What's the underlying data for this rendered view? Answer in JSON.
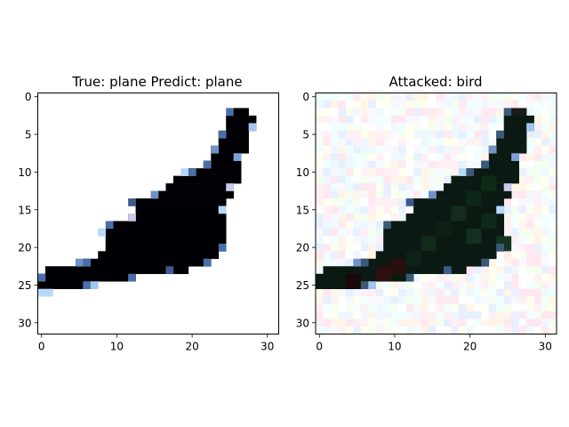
{
  "chart_data": [
    {
      "type": "heatmap",
      "title": "True: plane  Predict: plane",
      "xlabel": "",
      "ylabel": "",
      "xlim": [
        -0.5,
        31.5
      ],
      "ylim": [
        31.5,
        -0.5
      ],
      "xticks": [
        0,
        10,
        20,
        30
      ],
      "yticks": [
        0,
        5,
        10,
        15,
        20,
        25,
        30
      ],
      "grid": false,
      "background": "#ffffff",
      "silhouette_color": "#000005",
      "rows": [
        {
          "y": 3,
          "x0": 25,
          "x1": 28
        },
        {
          "y": 4,
          "x0": 25,
          "x1": 28
        },
        {
          "y": 5,
          "x0": 24,
          "x1": 27
        },
        {
          "y": 6,
          "x0": 24,
          "x1": 27
        },
        {
          "y": 7,
          "x0": 23,
          "x1": 27
        },
        {
          "y": 8,
          "x0": 23,
          "x1": 26
        },
        {
          "y": 9,
          "x0": 22,
          "x1": 26
        },
        {
          "y": 10,
          "x0": 20,
          "x1": 26
        },
        {
          "y": 11,
          "x0": 18,
          "x1": 26
        },
        {
          "y": 12,
          "x0": 17,
          "x1": 25
        },
        {
          "y": 13,
          "x0": 16,
          "x1": 25
        },
        {
          "y": 14,
          "x0": 13,
          "x1": 24
        },
        {
          "y": 15,
          "x0": 13,
          "x1": 24
        },
        {
          "y": 16,
          "x0": 12,
          "x1": 24
        },
        {
          "y": 17,
          "x0": 10,
          "x1": 24
        },
        {
          "y": 18,
          "x0": 9,
          "x1": 24
        },
        {
          "y": 19,
          "x0": 9,
          "x1": 24
        },
        {
          "y": 20,
          "x0": 9,
          "x1": 24
        },
        {
          "y": 21,
          "x0": 8,
          "x1": 23
        },
        {
          "y": 22,
          "x0": 6,
          "x1": 22
        },
        {
          "y": 23,
          "x0": 1,
          "x1": 19
        },
        {
          "y": 24,
          "x0": 0,
          "x1": 12
        },
        {
          "y": 25,
          "x0": 0,
          "x1": 6
        }
      ],
      "edge_pixels": [
        {
          "x": 25,
          "y": 2,
          "c": "#4a6fa8"
        },
        {
          "x": 26,
          "y": 2,
          "c": "#000005"
        },
        {
          "x": 27,
          "y": 2,
          "c": "#000005"
        },
        {
          "x": 28,
          "y": 4,
          "c": "#9ec6ee"
        },
        {
          "x": 24,
          "y": 5,
          "c": "#4a6fa8"
        },
        {
          "x": 23,
          "y": 7,
          "c": "#6f93c6"
        },
        {
          "x": 26,
          "y": 8,
          "c": "#7aa2d8"
        },
        {
          "x": 22,
          "y": 9,
          "c": "#4a6fa8"
        },
        {
          "x": 19,
          "y": 10,
          "c": "#b8d8f8"
        },
        {
          "x": 20,
          "y": 10,
          "c": "#4a6fa8"
        },
        {
          "x": 25,
          "y": 12,
          "c": "#c9c9e8"
        },
        {
          "x": 15,
          "y": 13,
          "c": "#6f93c6"
        },
        {
          "x": 12,
          "y": 14,
          "c": "#3d5a8a"
        },
        {
          "x": 24,
          "y": 15,
          "c": "#b8d8f8"
        },
        {
          "x": 12,
          "y": 16,
          "c": "#c9c9e8"
        },
        {
          "x": 9,
          "y": 17,
          "c": "#4a6fa8"
        },
        {
          "x": 8,
          "y": 18,
          "c": "#b8d8f8"
        },
        {
          "x": 24,
          "y": 20,
          "c": "#4a6fa8"
        },
        {
          "x": 5,
          "y": 22,
          "c": "#6f93c6"
        },
        {
          "x": 6,
          "y": 22,
          "c": "#4a6fa8"
        },
        {
          "x": 22,
          "y": 22,
          "c": "#4a6fa8"
        },
        {
          "x": 17,
          "y": 23,
          "c": "#3d5a8a"
        },
        {
          "x": 12,
          "y": 24,
          "c": "#4a6fa8"
        },
        {
          "x": 0,
          "y": 24,
          "c": "#4a6fa8"
        },
        {
          "x": 6,
          "y": 25,
          "c": "#4a6fa8"
        },
        {
          "x": 7,
          "y": 25,
          "c": "#9ec6ee"
        },
        {
          "x": 0,
          "y": 26,
          "c": "#b8d8f8"
        },
        {
          "x": 1,
          "y": 26,
          "c": "#b8d8f8"
        }
      ]
    },
    {
      "type": "heatmap",
      "title": "Attacked: bird",
      "xlabel": "",
      "ylabel": "",
      "xlim": [
        -0.5,
        31.5
      ],
      "ylim": [
        31.5,
        -0.5
      ],
      "xticks": [
        0,
        10,
        20,
        30
      ],
      "yticks": [
        0,
        5,
        10,
        15,
        20,
        25,
        30
      ],
      "grid": false,
      "background": "#ffffff",
      "silhouette_color": "#0a1a12",
      "noise_palette": [
        "#ffffff",
        "#fff0f5",
        "#f0f8ff",
        "#f5fff0",
        "#fffff0",
        "#f0ffff",
        "#ffe8f0",
        "#e8f0ff",
        "#fff5e8",
        "#f8f8ff"
      ],
      "rows": [
        {
          "y": 3,
          "x0": 25,
          "x1": 28
        },
        {
          "y": 4,
          "x0": 25,
          "x1": 28
        },
        {
          "y": 5,
          "x0": 24,
          "x1": 27
        },
        {
          "y": 6,
          "x0": 24,
          "x1": 27
        },
        {
          "y": 7,
          "x0": 23,
          "x1": 27
        },
        {
          "y": 8,
          "x0": 23,
          "x1": 26
        },
        {
          "y": 9,
          "x0": 22,
          "x1": 26
        },
        {
          "y": 10,
          "x0": 20,
          "x1": 26
        },
        {
          "y": 11,
          "x0": 18,
          "x1": 26
        },
        {
          "y": 12,
          "x0": 17,
          "x1": 25
        },
        {
          "y": 13,
          "x0": 16,
          "x1": 25
        },
        {
          "y": 14,
          "x0": 13,
          "x1": 24
        },
        {
          "y": 15,
          "x0": 13,
          "x1": 24
        },
        {
          "y": 16,
          "x0": 12,
          "x1": 24
        },
        {
          "y": 17,
          "x0": 10,
          "x1": 24
        },
        {
          "y": 18,
          "x0": 9,
          "x1": 24
        },
        {
          "y": 19,
          "x0": 9,
          "x1": 24
        },
        {
          "y": 20,
          "x0": 9,
          "x1": 24
        },
        {
          "y": 21,
          "x0": 8,
          "x1": 23
        },
        {
          "y": 22,
          "x0": 6,
          "x1": 22
        },
        {
          "y": 23,
          "x0": 1,
          "x1": 19
        },
        {
          "y": 24,
          "x0": 0,
          "x1": 12
        },
        {
          "y": 25,
          "x0": 0,
          "x1": 6
        }
      ],
      "edge_pixels": [
        {
          "x": 25,
          "y": 2,
          "c": "#3a5a7a"
        },
        {
          "x": 26,
          "y": 2,
          "c": "#1a1a1a"
        },
        {
          "x": 27,
          "y": 2,
          "c": "#1a1a1a"
        },
        {
          "x": 28,
          "y": 4,
          "c": "#9ec6ee"
        },
        {
          "x": 24,
          "y": 5,
          "c": "#3a5a7a"
        },
        {
          "x": 23,
          "y": 7,
          "c": "#6f93c6"
        },
        {
          "x": 26,
          "y": 8,
          "c": "#7aa2d8"
        },
        {
          "x": 22,
          "y": 9,
          "c": "#3a5a7a"
        },
        {
          "x": 19,
          "y": 10,
          "c": "#b8d8f8"
        },
        {
          "x": 20,
          "y": 10,
          "c": "#3a5a7a"
        },
        {
          "x": 25,
          "y": 12,
          "c": "#c9c9e8"
        },
        {
          "x": 15,
          "y": 13,
          "c": "#6f93c6"
        },
        {
          "x": 12,
          "y": 14,
          "c": "#3d5a8a"
        },
        {
          "x": 24,
          "y": 15,
          "c": "#b8d8f8"
        },
        {
          "x": 9,
          "y": 17,
          "c": "#3a5a7a"
        },
        {
          "x": 24,
          "y": 20,
          "c": "#3a5a7a"
        },
        {
          "x": 5,
          "y": 22,
          "c": "#6f93c6"
        },
        {
          "x": 6,
          "y": 22,
          "c": "#3a5a7a"
        },
        {
          "x": 22,
          "y": 22,
          "c": "#3a5a7a"
        },
        {
          "x": 17,
          "y": 23,
          "c": "#3d5a8a"
        },
        {
          "x": 12,
          "y": 24,
          "c": "#3a5a7a"
        },
        {
          "x": 6,
          "y": 25,
          "c": "#3a5a7a"
        },
        {
          "x": 7,
          "y": 25,
          "c": "#9ec6ee"
        }
      ],
      "tint_pixels": [
        {
          "x": 22,
          "y": 11,
          "c": "#102a1a"
        },
        {
          "x": 20,
          "y": 13,
          "c": "#0e2818"
        },
        {
          "x": 18,
          "y": 15,
          "c": "#132c1c"
        },
        {
          "x": 16,
          "y": 17,
          "c": "#0c2014"
        },
        {
          "x": 14,
          "y": 19,
          "c": "#112a1a"
        },
        {
          "x": 12,
          "y": 21,
          "c": "#0d2216"
        },
        {
          "x": 10,
          "y": 22,
          "c": "#2a0f0f"
        },
        {
          "x": 8,
          "y": 23,
          "c": "#2c1010"
        },
        {
          "x": 4,
          "y": 24,
          "c": "#1a0808"
        },
        {
          "x": 20,
          "y": 18,
          "c": "#14301e"
        },
        {
          "x": 22,
          "y": 16,
          "c": "#10281a"
        },
        {
          "x": 24,
          "y": 19,
          "c": "#163420"
        }
      ]
    }
  ]
}
